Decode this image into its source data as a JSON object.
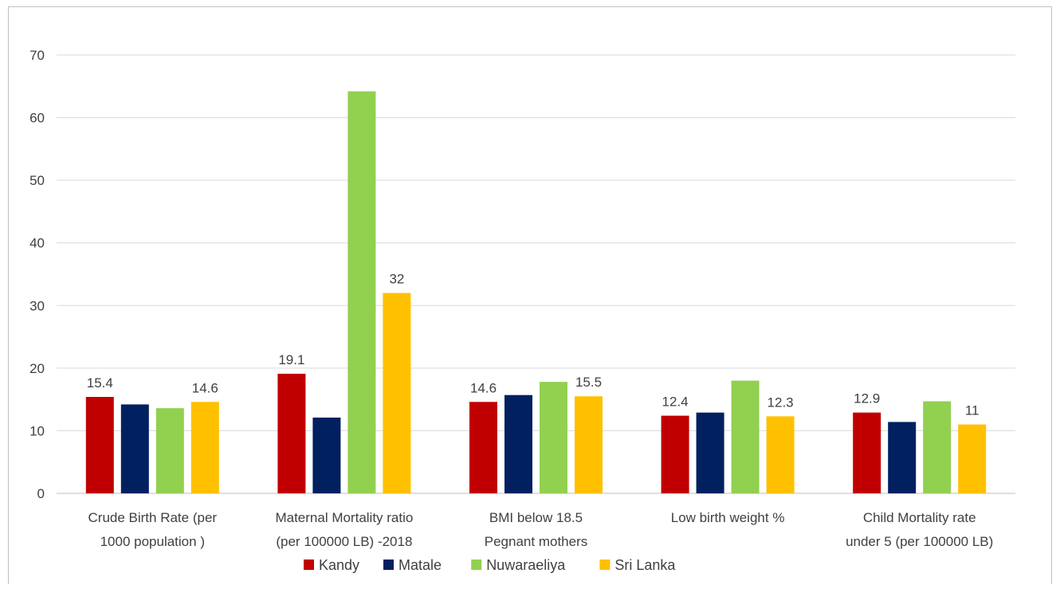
{
  "chart_data": {
    "type": "bar",
    "title": "",
    "xlabel": "",
    "ylabel": "",
    "ylim": [
      0,
      70
    ],
    "yticks": [
      0,
      10,
      20,
      30,
      40,
      50,
      60,
      70
    ],
    "grid": true,
    "legend_position": "bottom",
    "categories": [
      [
        "Crude Birth Rate (per",
        "1000 population )"
      ],
      [
        "Maternal Mortality ratio",
        "(per 100000 LB) -2018"
      ],
      [
        "BMI below 18.5",
        "Pegnant mothers"
      ],
      [
        "Low birth weight %"
      ],
      [
        "Child Mortality rate",
        "under 5 (per 100000 LB)"
      ]
    ],
    "series": [
      {
        "name": "Kandy",
        "color": "#c00000",
        "values": [
          15.4,
          19.1,
          14.6,
          12.4,
          12.9
        ],
        "labels": [
          "15.4",
          "19.1",
          "14.6",
          "12.4",
          "12.9"
        ]
      },
      {
        "name": "Matale",
        "color": "#002060",
        "values": [
          14.2,
          12.1,
          15.7,
          12.9,
          11.4
        ],
        "labels": [
          "",
          "",
          "",
          "",
          ""
        ]
      },
      {
        "name": "Nuwaraeliya",
        "color": "#92d050",
        "values": [
          13.6,
          64.2,
          17.8,
          18.0,
          14.7
        ],
        "labels": [
          "",
          "",
          "",
          "",
          ""
        ]
      },
      {
        "name": "Sri Lanka",
        "color": "#ffc000",
        "values": [
          14.6,
          32.0,
          15.5,
          12.3,
          11.0
        ],
        "labels": [
          "14.6",
          "32",
          "15.5",
          "12.3",
          "11"
        ]
      }
    ]
  }
}
